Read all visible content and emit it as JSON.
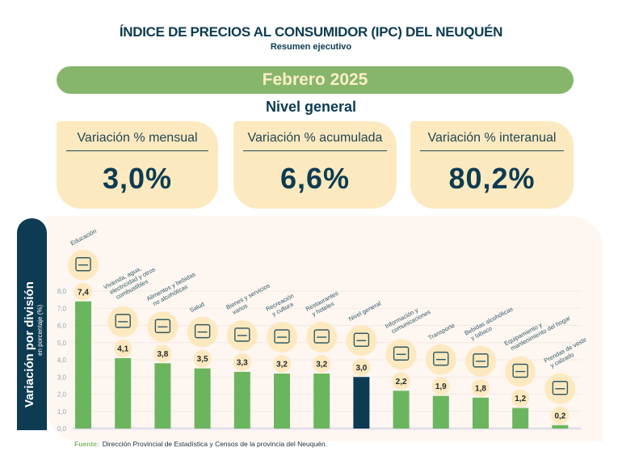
{
  "header": {
    "title": "ÍNDICE DE PRECIOS AL CONSUMIDOR (IPC) DEL NEUQUÉN",
    "subtitle": "Resumen ejecutivo",
    "period": "Febrero 2025",
    "section": "Nivel general"
  },
  "cards": [
    {
      "label": "Variación % mensual",
      "value": "3,0%"
    },
    {
      "label": "Variación % acumulada",
      "value": "6,6%"
    },
    {
      "label": "Variación % interanual",
      "value": "80,2%"
    }
  ],
  "side": {
    "title": "Variación por división",
    "subtitle": "en porcentaje (%)"
  },
  "footer": {
    "label": "Fuente:",
    "text": "Dirección Provincial de Estadística y Censos de la provincia del Neuquén."
  },
  "colors": {
    "bar": "#6cb55f",
    "highlight_bar": "#0d3b52",
    "badge": "#fde9bf",
    "accent_green": "#86b66b"
  },
  "chart_data": {
    "type": "bar",
    "title": "Variación por división",
    "ylabel": "en porcentaje (%)",
    "xlabel": "",
    "ylim": [
      0,
      8
    ],
    "yticks": [
      "0,0",
      "1,0",
      "2,0",
      "3,0",
      "4,0",
      "5,0",
      "6,0",
      "7,0",
      "8,0"
    ],
    "grid": true,
    "categories": [
      [
        "Educación"
      ],
      [
        "Vivienda, agua,",
        "electricidad y otros",
        "combustibles"
      ],
      [
        "Alimentos y bebidas",
        "no alcohólicas"
      ],
      [
        "Salud"
      ],
      [
        "Bienes y servicios",
        "varios"
      ],
      [
        "Recreación",
        "y cultura"
      ],
      [
        "Restaurantes",
        "y hoteles"
      ],
      [
        "Nivel general"
      ],
      [
        "Información y",
        "comunicaciones"
      ],
      [
        "Transporte"
      ],
      [
        "Bebidas alcohólicas",
        "y tabaco"
      ],
      [
        "Equipamiento y",
        "mantenimiento del hogar"
      ],
      [
        "Prendas de vestir",
        "y calzado"
      ]
    ],
    "values": [
      7.4,
      4.1,
      3.8,
      3.5,
      3.3,
      3.2,
      3.2,
      3.0,
      2.2,
      1.9,
      1.8,
      1.2,
      0.2
    ],
    "value_labels": [
      "7,4",
      "4,1",
      "3,8",
      "3,5",
      "3,3",
      "3,2",
      "3,2",
      "3,0",
      "2,2",
      "1,9",
      "1,8",
      "1,2",
      "0,2"
    ],
    "icons": [
      "books-icon",
      "house-bulb-icon",
      "groceries-icon",
      "health-shield-icon",
      "scissors-card-icon",
      "beach-umbrella-icon",
      "luggage-icon",
      "basket-icon",
      "smartphone-icon",
      "car-bus-icon",
      "wine-bottle-icon",
      "washing-machine-icon",
      "shirt-shoe-icon"
    ],
    "highlight_index": 7
  }
}
